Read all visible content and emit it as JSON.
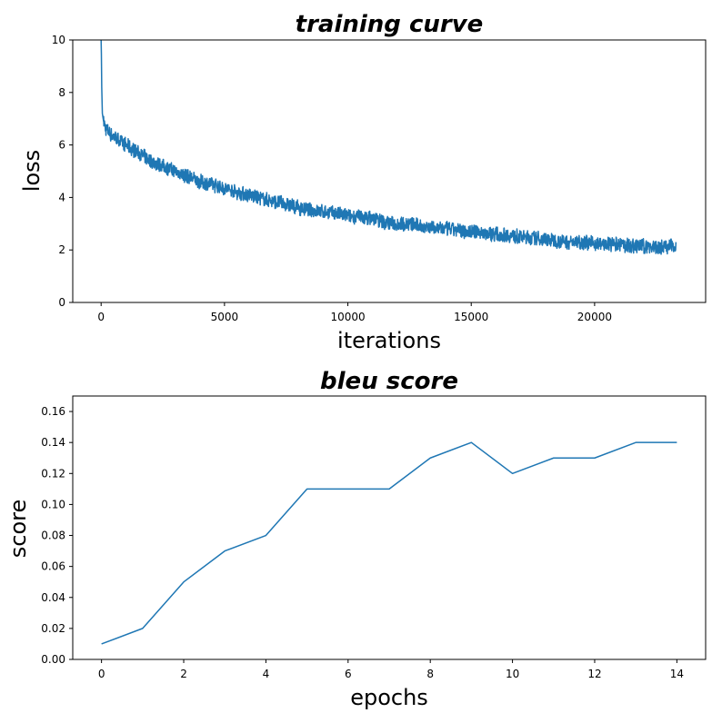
{
  "chart_data": [
    {
      "type": "line",
      "title": "training curve",
      "xlabel": "iterations",
      "ylabel": "loss",
      "xlim": [
        -1150,
        24500
      ],
      "ylim": [
        0,
        10
      ],
      "xticks": [
        0,
        5000,
        10000,
        15000,
        20000
      ],
      "yticks": [
        0,
        2,
        4,
        6,
        8,
        10
      ],
      "grid": false,
      "color": "#1f77b4",
      "series": [
        {
          "x": [
            0,
            10,
            25,
            50,
            100,
            200,
            400,
            700,
            1000,
            1500,
            2000,
            2500,
            3000,
            3500,
            4000,
            4500,
            5000,
            5500,
            6000,
            6500,
            7000,
            7500,
            8000,
            8500,
            9000,
            9500,
            10000,
            10500,
            11000,
            11500,
            12000,
            12500,
            13000,
            13500,
            14000,
            14500,
            15000,
            15500,
            16000,
            16500,
            17000,
            17500,
            18000,
            18500,
            19000,
            19500,
            20000,
            20500,
            21000,
            21500,
            22000,
            22500,
            23000,
            23300
          ],
          "y": [
            10.0,
            9.5,
            8.2,
            7.2,
            6.9,
            6.6,
            6.4,
            6.2,
            6.0,
            5.7,
            5.4,
            5.2,
            5.0,
            4.8,
            4.6,
            4.5,
            4.35,
            4.2,
            4.1,
            3.95,
            3.85,
            3.75,
            3.6,
            3.5,
            3.45,
            3.4,
            3.3,
            3.25,
            3.2,
            3.05,
            3.0,
            3.0,
            2.9,
            2.85,
            2.8,
            2.75,
            2.7,
            2.65,
            2.6,
            2.55,
            2.5,
            2.45,
            2.4,
            2.35,
            2.3,
            2.3,
            2.25,
            2.2,
            2.2,
            2.15,
            2.15,
            2.1,
            2.15,
            2.2
          ]
        }
      ]
    },
    {
      "type": "line",
      "title": "bleu score",
      "xlabel": "epochs",
      "ylabel": "score",
      "xlim": [
        -0.7,
        14.7
      ],
      "ylim": [
        0,
        0.17
      ],
      "xticks": [
        0,
        2,
        4,
        6,
        8,
        10,
        12,
        14
      ],
      "yticks": [
        "0.00",
        "0.02",
        "0.04",
        "0.06",
        "0.08",
        "0.10",
        "0.12",
        "0.14",
        "0.16"
      ],
      "grid": false,
      "color": "#1f77b4",
      "series": [
        {
          "x": [
            0,
            1,
            2,
            3,
            4,
            5,
            6,
            7,
            8,
            9,
            10,
            11,
            12,
            13,
            14
          ],
          "y": [
            0.01,
            0.02,
            0.05,
            0.07,
            0.08,
            0.11,
            0.11,
            0.11,
            0.13,
            0.14,
            0.12,
            0.13,
            0.13,
            0.14,
            0.14
          ]
        }
      ]
    }
  ]
}
